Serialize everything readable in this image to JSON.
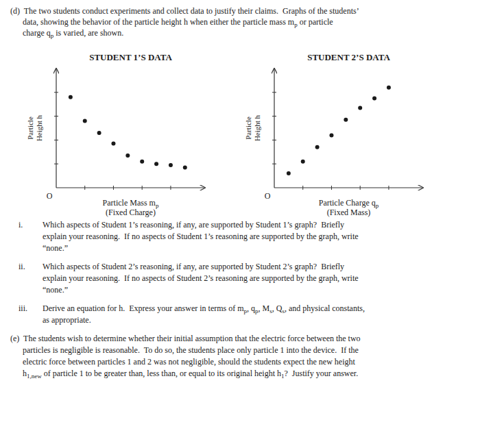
{
  "intro": {
    "lines": [
      [
        "(d)  The two students conduct experiments and collect data to justify their claims.  Graphs of the students’"
      ],
      [
        "      data, showing the behavior of the particle height h when either the particle mass m",
        "p",
        " or particle"
      ],
      [
        "      charge q",
        "p",
        " is varied, are shown."
      ]
    ]
  },
  "chart_data": [
    {
      "type": "scatter",
      "title": "STUDENT 1’S DATA",
      "xlabel": [
        [
          "Particle Mass m",
          "p"
        ],
        [
          "(Fixed Charge)"
        ]
      ],
      "ylabel": "Particle\nHeight h",
      "x": [
        0.5,
        1.0,
        1.5,
        2.0,
        2.5,
        3.0,
        3.5,
        4.0,
        4.5
      ],
      "values": [
        3.8,
        2.8,
        2.3,
        1.85,
        1.35,
        1.1,
        1.0,
        0.95,
        0.85
      ],
      "color": "#1a1a1a",
      "xlim": [
        0,
        5.2
      ],
      "ylim": [
        0,
        5.0
      ],
      "xticks": [
        1.0,
        2.0,
        3.0,
        4.0
      ],
      "yticks": [
        1.0,
        2.0,
        3.0,
        4.0
      ],
      "tick_labels": false,
      "grid": false,
      "annotations": [
        "O"
      ]
    },
    {
      "type": "scatter",
      "title": "STUDENT 2’S DATA",
      "xlabel": [
        [
          "Particle Charge q",
          "p"
        ],
        [
          "(Fixed Mass)"
        ]
      ],
      "ylabel": "Particle\nHeight h",
      "x": [
        0.5,
        1.0,
        1.5,
        2.0,
        2.5,
        3.0,
        3.5,
        4.0
      ],
      "values": [
        0.6,
        1.1,
        1.7,
        2.2,
        2.85,
        3.35,
        3.75,
        4.2
      ],
      "color": "#1a1a1a",
      "xlim": [
        0,
        5.2
      ],
      "ylim": [
        0,
        5.0
      ],
      "xticks": [
        1.0,
        2.0,
        3.0,
        4.0
      ],
      "yticks": [
        1.0,
        2.0,
        3.0,
        4.0
      ],
      "tick_labels": false,
      "grid": false,
      "annotations": [
        "O"
      ]
    }
  ],
  "questions": [
    {
      "label": "i.",
      "lines": [
        [
          "Which aspects of Student 1’s reasoning, if any, are supported by Student 1’s graph?  Briefly"
        ],
        [
          "explain your reasoning.  If no aspects of Student 1’s reasoning are supported by the graph, write"
        ],
        [
          "“none.”"
        ]
      ]
    },
    {
      "label": "ii.",
      "lines": [
        [
          "Which aspects of Student 2’s reasoning, if any, are supported by Student 2’s graph?  Briefly"
        ],
        [
          "explain your reasoning.  If no aspects of Student 2’s reasoning are supported by the graph, write"
        ],
        [
          "“none.”"
        ]
      ]
    },
    {
      "label": "iii.",
      "lines": [
        [
          "Derive an equation for h.  Express your answer in terms of m",
          "p",
          ", q",
          "p",
          ", M",
          "s",
          ", Q",
          "s",
          ", and physical constants,"
        ],
        [
          "as appropriate."
        ]
      ]
    },
    {
      "lines": [
        [
          "(e)  The students wish to determine whether their initial assumption that the electric force between the two"
        ],
        [
          "      particles is negligible is reasonable.  To do so, the students place only particle 1 into the device.  If the"
        ],
        [
          "      electric force between particles 1 and 2 was not negligible, should the students expect the new height"
        ],
        [
          "      h",
          "1,new",
          " of particle 1 to be greater than, less than, or equal to its original height h",
          "1",
          "?  Justify your answer."
        ]
      ]
    }
  ]
}
